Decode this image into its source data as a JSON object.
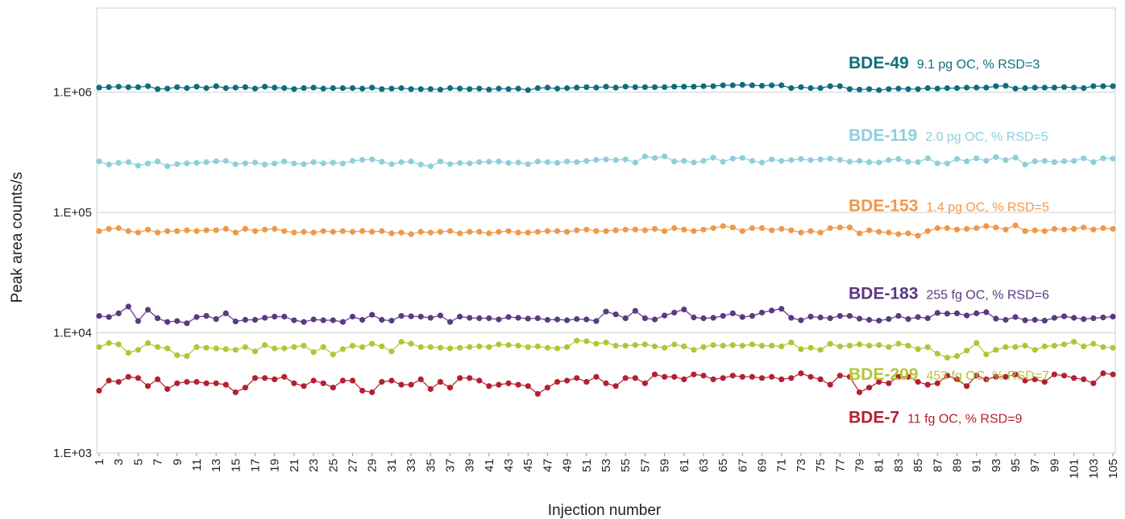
{
  "chart_data": {
    "type": "line",
    "xlabel": "Injection number",
    "ylabel": "Peak area counts/s",
    "yscale": "log",
    "ylim": [
      1000,
      5000000
    ],
    "xlim": [
      1,
      105
    ],
    "grid": "horizontal",
    "legend": "inline labels at right",
    "y_ticks": [
      "1.E+03",
      "1.E+04",
      "1.E+05",
      "1.E+06"
    ],
    "y_tick_values": [
      1000,
      10000,
      100000,
      1000000
    ],
    "x_tick_labels": [
      "1",
      "3",
      "5",
      "7",
      "9",
      "11",
      "13",
      "15",
      "17",
      "19",
      "21",
      "23",
      "25",
      "27",
      "29",
      "31",
      "33",
      "35",
      "37",
      "39",
      "41",
      "43",
      "45",
      "47",
      "49",
      "51",
      "53",
      "55",
      "57",
      "59",
      "61",
      "63",
      "65",
      "67",
      "69",
      "71",
      "73",
      "75",
      "77",
      "79",
      "81",
      "83",
      "85",
      "87",
      "89",
      "91",
      "93",
      "95",
      "97",
      "99",
      "101",
      "103",
      "105"
    ],
    "series": [
      {
        "name": "BDE-49",
        "note": "9.1 pg OC, % RSD=3",
        "color": "#0d6e7e",
        "values": [
          1090000,
          1100000,
          1110000,
          1100000,
          1100000,
          1120000,
          1060000,
          1070000,
          1100000,
          1080000,
          1110000,
          1080000,
          1120000,
          1080000,
          1090000,
          1100000,
          1070000,
          1110000,
          1090000,
          1080000,
          1060000,
          1080000,
          1090000,
          1070000,
          1080000,
          1080000,
          1080000,
          1070000,
          1090000,
          1060000,
          1070000,
          1080000,
          1060000,
          1060000,
          1060000,
          1050000,
          1080000,
          1070000,
          1060000,
          1070000,
          1050000,
          1070000,
          1060000,
          1070000,
          1040000,
          1080000,
          1090000,
          1070000,
          1080000,
          1090000,
          1100000,
          1090000,
          1110000,
          1090000,
          1110000,
          1100000,
          1100000,
          1100000,
          1100000,
          1110000,
          1110000,
          1110000,
          1120000,
          1120000,
          1140000,
          1140000,
          1150000,
          1140000,
          1130000,
          1140000,
          1140000,
          1080000,
          1100000,
          1080000,
          1080000,
          1120000,
          1120000,
          1060000,
          1050000,
          1060000,
          1040000,
          1060000,
          1070000,
          1060000,
          1060000,
          1080000,
          1070000,
          1080000,
          1080000,
          1090000,
          1090000,
          1090000,
          1120000,
          1130000,
          1070000,
          1080000,
          1090000,
          1090000,
          1090000,
          1100000,
          1090000,
          1080000,
          1120000,
          1120000,
          1120000
        ]
      },
      {
        "name": "BDE-119",
        "note": "2.0 pg OC, % RSD=5",
        "color": "#8ecfdc",
        "values": [
          265000,
          250000,
          258000,
          262000,
          245000,
          255000,
          265000,
          242000,
          252000,
          256000,
          258000,
          262000,
          266000,
          268000,
          252000,
          256000,
          260000,
          250000,
          255000,
          265000,
          255000,
          252000,
          262000,
          256000,
          260000,
          255000,
          268000,
          274000,
          276000,
          264000,
          252000,
          262000,
          265000,
          250000,
          242000,
          265000,
          252000,
          258000,
          256000,
          262000,
          264000,
          265000,
          258000,
          260000,
          252000,
          265000,
          262000,
          258000,
          265000,
          262000,
          268000,
          274000,
          276000,
          272000,
          276000,
          260000,
          292000,
          284000,
          292000,
          265000,
          268000,
          260000,
          268000,
          286000,
          264000,
          280000,
          284000,
          268000,
          260000,
          276000,
          268000,
          272000,
          278000,
          272000,
          276000,
          280000,
          274000,
          264000,
          268000,
          262000,
          260000,
          272000,
          278000,
          264000,
          262000,
          282000,
          256000,
          255000,
          278000,
          266000,
          282000,
          268000,
          288000,
          272000,
          286000,
          250000,
          266000,
          268000,
          262000,
          266000,
          268000,
          282000,
          262000,
          282000,
          280000
        ]
      },
      {
        "name": "BDE-153",
        "note": "1.4 pg OC, % RSD=5",
        "color": "#f0984a",
        "values": [
          70000,
          73000,
          74000,
          70000,
          68000,
          72000,
          68000,
          70000,
          70000,
          71000,
          70000,
          71000,
          71000,
          73000,
          68000,
          73000,
          70000,
          72000,
          73000,
          70000,
          68000,
          69000,
          68000,
          70000,
          69000,
          70000,
          69000,
          70000,
          69000,
          70000,
          67000,
          68000,
          66000,
          69000,
          68000,
          69000,
          70000,
          67000,
          69000,
          69000,
          67000,
          69000,
          70000,
          68000,
          68000,
          69000,
          70000,
          70000,
          69000,
          71000,
          72000,
          70000,
          70000,
          71000,
          72000,
          72000,
          71000,
          73000,
          70000,
          74000,
          72000,
          70000,
          72000,
          74000,
          77000,
          75000,
          70000,
          74000,
          74000,
          71000,
          73000,
          71000,
          68000,
          70000,
          68000,
          74000,
          75000,
          75000,
          67000,
          71000,
          69000,
          68000,
          66000,
          67000,
          64000,
          70000,
          74000,
          74000,
          72000,
          73000,
          74000,
          77000,
          75000,
          72000,
          78000,
          70000,
          71000,
          70000,
          73000,
          72000,
          73000,
          75000,
          72000,
          74000,
          73000
        ]
      },
      {
        "name": "BDE-183",
        "note": "255 fg OC, % RSD=6",
        "color": "#5a3a82",
        "values": [
          13800,
          13500,
          14500,
          16500,
          12500,
          15500,
          13200,
          12300,
          12500,
          12000,
          13500,
          13800,
          13000,
          14500,
          12400,
          12800,
          12800,
          13300,
          13600,
          13600,
          12700,
          12300,
          12900,
          12700,
          12700,
          12300,
          13600,
          12800,
          14100,
          12800,
          12600,
          13800,
          13700,
          13600,
          13300,
          13900,
          12300,
          13600,
          13300,
          13200,
          13200,
          12900,
          13500,
          13300,
          13100,
          13200,
          12800,
          12900,
          12700,
          13000,
          12900,
          12500,
          15000,
          14200,
          13200,
          15200,
          13200,
          12900,
          13900,
          14700,
          15600,
          13400,
          13200,
          13300,
          13800,
          14500,
          13500,
          13800,
          14700,
          15300,
          15800,
          13300,
          12700,
          13600,
          13400,
          13200,
          13800,
          13800,
          13100,
          12800,
          12600,
          13000,
          13800,
          13000,
          13500,
          13200,
          14600,
          14400,
          14500,
          13900,
          14500,
          14800,
          13100,
          12800,
          13500,
          12700,
          12800,
          12600,
          13300,
          13700,
          13300,
          13000,
          13200,
          13400,
          13600
        ]
      },
      {
        "name": "BDE-209",
        "note": "453 fg OC, % RSD=7",
        "color": "#b5c435",
        "values": [
          7600,
          8200,
          8000,
          6800,
          7200,
          8200,
          7600,
          7400,
          6500,
          6400,
          7600,
          7500,
          7400,
          7300,
          7200,
          7600,
          7000,
          7900,
          7400,
          7400,
          7600,
          7800,
          6900,
          7600,
          6600,
          7300,
          7800,
          7600,
          8100,
          7700,
          7000,
          8400,
          8100,
          7600,
          7600,
          7500,
          7400,
          7500,
          7600,
          7700,
          7600,
          8000,
          7900,
          7800,
          7600,
          7700,
          7500,
          7400,
          7600,
          8600,
          8500,
          8100,
          8300,
          7800,
          7800,
          7900,
          8000,
          7700,
          7500,
          8000,
          7700,
          7200,
          7600,
          7900,
          7800,
          7900,
          7800,
          8000,
          7800,
          7800,
          7700,
          8300,
          7300,
          7500,
          7200,
          8100,
          7700,
          7800,
          8000,
          7800,
          7900,
          7600,
          8100,
          7800,
          7300,
          7600,
          6700,
          6200,
          6400,
          7100,
          8200,
          6600,
          7200,
          7600,
          7600,
          7800,
          7200,
          7700,
          7800,
          8000,
          8400,
          7700,
          8100,
          7600,
          7500
        ]
      },
      {
        "name": "BDE-7",
        "note": "11 fg OC, % RSD=9",
        "color": "#b42030",
        "values": [
          3300,
          4000,
          3900,
          4300,
          4200,
          3600,
          4100,
          3400,
          3800,
          3900,
          3900,
          3800,
          3800,
          3700,
          3200,
          3500,
          4200,
          4200,
          4100,
          4300,
          3800,
          3600,
          4000,
          3800,
          3500,
          4000,
          4000,
          3300,
          3200,
          3900,
          4000,
          3700,
          3700,
          4100,
          3400,
          3900,
          3500,
          4200,
          4200,
          4000,
          3600,
          3700,
          3800,
          3700,
          3600,
          3100,
          3500,
          3900,
          4000,
          4200,
          3900,
          4300,
          3800,
          3600,
          4200,
          4200,
          3800,
          4500,
          4300,
          4300,
          4100,
          4500,
          4400,
          4100,
          4200,
          4400,
          4300,
          4300,
          4200,
          4300,
          4100,
          4200,
          4600,
          4300,
          4100,
          3700,
          4400,
          4300,
          3200,
          3500,
          3900,
          3800,
          4300,
          4300,
          3900,
          3700,
          3800,
          4400,
          4100,
          3600,
          4400,
          4100,
          4300,
          4300,
          4500,
          4000,
          4100,
          3900,
          4500,
          4400,
          4200,
          4100,
          3800,
          4600,
          4500
        ]
      }
    ]
  }
}
